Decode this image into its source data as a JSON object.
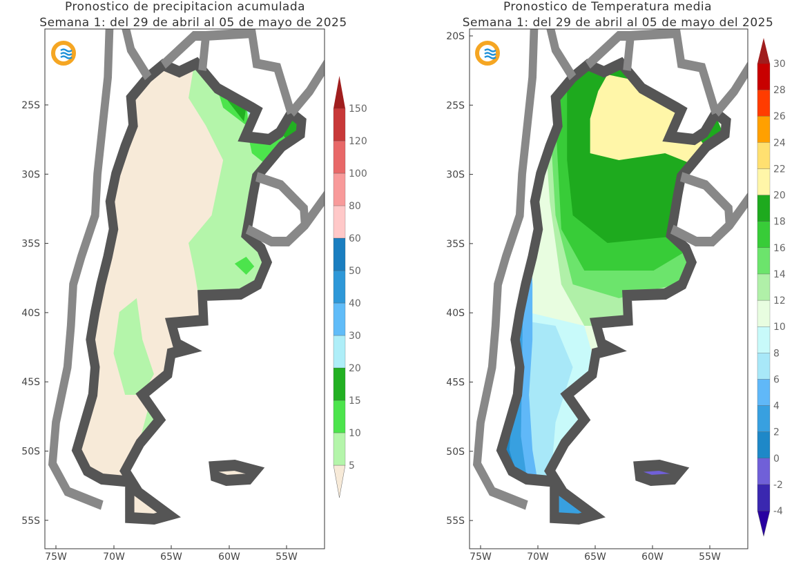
{
  "maps": [
    {
      "title_line1": "Pronostico de precipitacion acumulada",
      "title_line2": "Semana 1: del 29 de abril al 05 de mayo de 2025",
      "y_ticks": [
        "25S",
        "30S",
        "35S",
        "40S",
        "45S",
        "50S",
        "55S"
      ],
      "x_ticks": [
        "75W",
        "70W",
        "65W",
        "60W",
        "55W"
      ],
      "colorbar": {
        "labels": [
          "5",
          "10",
          "15",
          "20",
          "30",
          "40",
          "50",
          "60",
          "80",
          "100",
          "120",
          "150"
        ],
        "colors": [
          "#f7ead8",
          "#b4f5aa",
          "#4ce44c",
          "#22b022",
          "#aeeef8",
          "#60bcf8",
          "#2e98d8",
          "#1a7ec0",
          "#ffc8c8",
          "#f89a9a",
          "#e86868",
          "#c83838",
          "#a01e1e"
        ]
      }
    },
    {
      "title_line1": "Pronostico de Temperatura media",
      "title_line2": "Semana 1: del 29 de abril al 05 de mayo del 2025",
      "y_ticks": [
        "20S",
        "25S",
        "30S",
        "35S",
        "40S",
        "45S",
        "50S",
        "55S"
      ],
      "x_ticks": [
        "75W",
        "70W",
        "65W",
        "60W",
        "55W"
      ],
      "colorbar": {
        "labels": [
          "-4",
          "-2",
          "0",
          "2",
          "4",
          "6",
          "8",
          "10",
          "12",
          "14",
          "16",
          "18",
          "20",
          "22",
          "24",
          "26",
          "28",
          "30"
        ],
        "colors": [
          "#2800a0",
          "#3a28b0",
          "#7060d8",
          "#1e88c8",
          "#38a0e0",
          "#60b8f8",
          "#a8e8f8",
          "#c8fafa",
          "#e8fde0",
          "#b0f0a8",
          "#6ce46c",
          "#38cc38",
          "#1eaa1e",
          "#fff6a8",
          "#ffe070",
          "#ffa000",
          "#ff3c00",
          "#c80000",
          "#a01e1e"
        ]
      }
    }
  ],
  "logo": {
    "name": "smn-logo",
    "colors": [
      "#f5a623",
      "#1e90d8"
    ]
  }
}
